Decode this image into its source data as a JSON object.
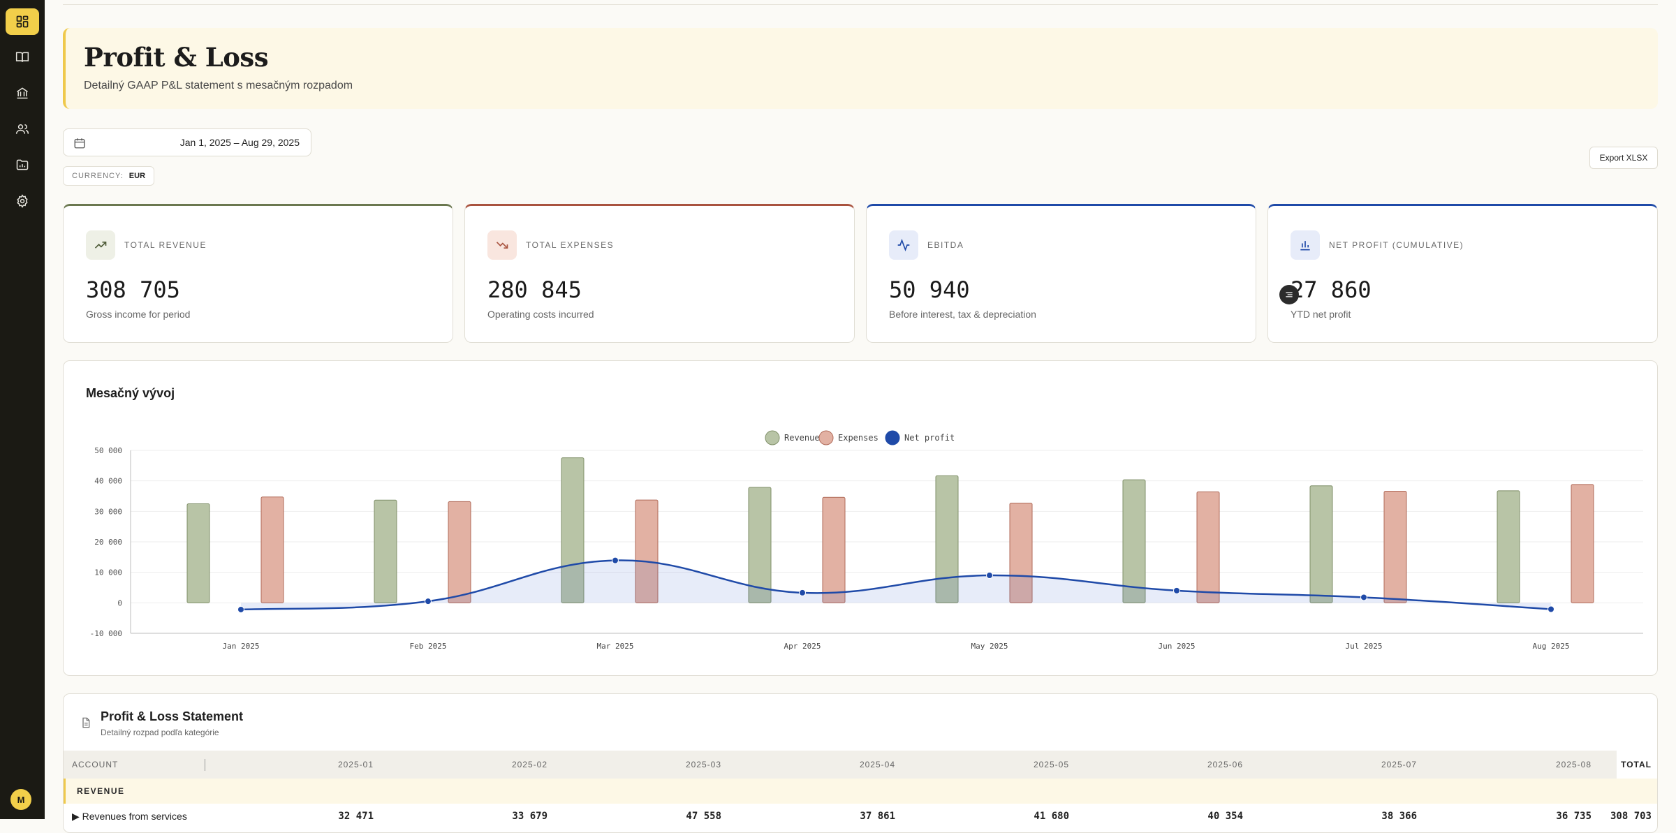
{
  "sidebar": {
    "items": [
      {
        "icon": "dashboard-icon"
      },
      {
        "icon": "book-icon"
      },
      {
        "icon": "bank-icon"
      },
      {
        "icon": "users-icon"
      },
      {
        "icon": "folder-chart-icon"
      },
      {
        "icon": "gear-icon"
      }
    ],
    "avatar": "M"
  },
  "header": {
    "title": "Profit & Loss",
    "subtitle": "Detailný GAAP P&L statement s mesačným rozpadom"
  },
  "filters": {
    "date_range": "Jan 1, 2025 – Aug 29, 2025",
    "currency_label": "CURRENCY:",
    "currency_value": "EUR",
    "export_label": "Export XLSX"
  },
  "kpis": [
    {
      "label": "TOTAL REVENUE",
      "value": "308 705",
      "sub": "Gross income for period",
      "icon": "trending-up-icon",
      "color": "#6b7850",
      "icon_bg": "#eef0e6",
      "icon_color": "#4d5a36"
    },
    {
      "label": "TOTAL EXPENSES",
      "value": "280 845",
      "sub": "Operating costs incurred",
      "icon": "trending-down-icon",
      "color": "#a9533f",
      "icon_bg": "#f9e6df",
      "icon_color": "#a9533f"
    },
    {
      "label": "EBITDA",
      "value": "50 940",
      "sub": "Before interest, tax & depreciation",
      "icon": "activity-icon",
      "color": "#1f4aa8",
      "icon_bg": "#e7ecf9",
      "icon_color": "#1f4aa8"
    },
    {
      "label": "NET PROFIT (CUMULATIVE)",
      "value": "27 860",
      "sub": "YTD net profit",
      "icon": "bar-chart-icon",
      "color": "#1f4aa8",
      "icon_bg": "#e7ecf9",
      "icon_color": "#1f4aa8"
    }
  ],
  "chart": {
    "title": "Mesačný vývoj"
  },
  "chart_data": {
    "type": "bar",
    "categories": [
      "Jan 2025",
      "Feb 2025",
      "Mar 2025",
      "Apr 2025",
      "May 2025",
      "Jun 2025",
      "Jul 2025",
      "Aug 2025"
    ],
    "series": [
      {
        "name": "Revenue",
        "type": "bar",
        "color": "#b8c4a6",
        "stroke": "#7f8f68",
        "values": [
          32471,
          33679,
          47558,
          37861,
          41680,
          40354,
          38366,
          36735
        ]
      },
      {
        "name": "Expenses",
        "type": "bar",
        "color": "#e2b1a3",
        "stroke": "#b06a58",
        "values": [
          34700,
          33200,
          33700,
          34600,
          32700,
          36400,
          36600,
          38800
        ]
      },
      {
        "name": "Net profit",
        "type": "line",
        "color": "#1f4aa8",
        "values": [
          -2200,
          500,
          13900,
          3300,
          9000,
          4000,
          1800,
          -2100
        ]
      }
    ],
    "y_ticks": [
      "50 000",
      "40 000",
      "30 000",
      "20 000",
      "10 000",
      "0",
      "-10 000"
    ],
    "ylim": [
      -10000,
      50000
    ],
    "legend": "top-center",
    "grid": true
  },
  "statement": {
    "title": "Profit & Loss Statement",
    "subtitle": "Detailný rozpad podľa kategórie",
    "account_header": "ACCOUNT",
    "months": [
      "2025-01",
      "2025-02",
      "2025-03",
      "2025-04",
      "2025-05",
      "2025-06",
      "2025-07",
      "2025-08"
    ],
    "total_header": "TOTAL",
    "section": "REVENUE",
    "row": {
      "label": "Revenues from services",
      "values": [
        "32 471",
        "33 679",
        "47 558",
        "37 861",
        "41 680",
        "40 354",
        "38 366",
        "36 735"
      ],
      "total": "308 703"
    }
  }
}
